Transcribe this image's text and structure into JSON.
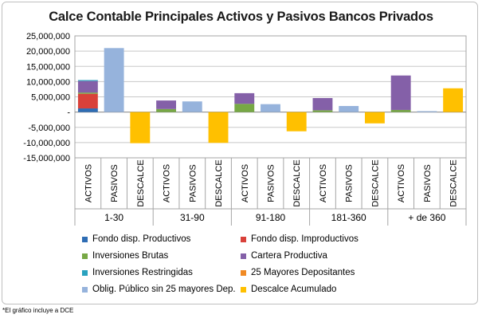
{
  "chart_data": {
    "type": "bar",
    "stacked": true,
    "title": "Calce Contable Principales Activos y Pasivos Bancos Privados",
    "ylim": [
      -15000000,
      25000000
    ],
    "yticks": [
      25000000,
      20000000,
      15000000,
      10000000,
      5000000,
      0,
      -5000000,
      -10000000,
      -15000000
    ],
    "ytick_labels": [
      "25,000,000",
      "20,000,000",
      "15,000,000",
      "10,000,000",
      "5,000,000",
      "-",
      "-5,000,000",
      "-10,000,000",
      "-15,000,000"
    ],
    "groups": [
      "1-30",
      "31-90",
      "91-180",
      "181-360",
      "+ de 360"
    ],
    "subcategories": [
      "ACTIVOS",
      "PASIVOS",
      "DESCALCE"
    ],
    "grid": true,
    "legend_position": "bottom",
    "series": [
      {
        "name": "Fondo disp. Productivos",
        "color": "#2e6db4",
        "values": [
          1200000,
          0,
          0,
          0,
          0,
          0,
          0,
          0,
          0,
          0,
          0,
          0,
          0,
          0,
          0
        ]
      },
      {
        "name": "Fondo disp. Improductivos",
        "color": "#d9413a",
        "values": [
          4800000,
          0,
          0,
          0,
          0,
          0,
          0,
          0,
          0,
          0,
          0,
          0,
          0,
          0,
          0
        ]
      },
      {
        "name": "Inversiones Brutas",
        "color": "#77a845",
        "values": [
          400000,
          0,
          0,
          1000000,
          0,
          0,
          2700000,
          0,
          0,
          600000,
          0,
          0,
          700000,
          0,
          0
        ]
      },
      {
        "name": "Cartera Productiva",
        "color": "#8460a8",
        "values": [
          3800000,
          0,
          0,
          2800000,
          0,
          0,
          3500000,
          0,
          0,
          4000000,
          0,
          0,
          11300000,
          0,
          0
        ]
      },
      {
        "name": "Inversiones Restringidas",
        "color": "#2aa2bf",
        "values": [
          300000,
          0,
          0,
          0,
          0,
          0,
          0,
          0,
          0,
          0,
          0,
          0,
          0,
          0,
          0
        ]
      },
      {
        "name": "25 Mayores Depositantes",
        "color": "#f08a24",
        "values": [
          0,
          0,
          0,
          0,
          0,
          0,
          0,
          0,
          0,
          0,
          0,
          0,
          0,
          0,
          0
        ]
      },
      {
        "name": "Oblig. Público sin 25 mayores Dep.",
        "color": "#96b3dc",
        "values": [
          0,
          21000000,
          0,
          0,
          3500000,
          0,
          0,
          2600000,
          0,
          0,
          2000000,
          0,
          0,
          300000,
          0
        ]
      },
      {
        "name": "Descalce Acumulado",
        "color": "#ffc000",
        "values": [
          0,
          0,
          -10200000,
          0,
          0,
          -10100000,
          0,
          0,
          -6300000,
          0,
          0,
          -3700000,
          0,
          0,
          7800000
        ]
      }
    ]
  },
  "footnote": "*El gráfico incluye a DCE"
}
